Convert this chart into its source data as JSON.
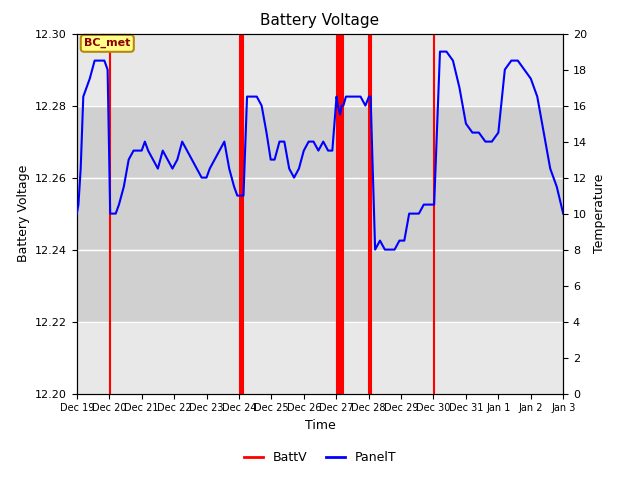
{
  "title": "Battery Voltage",
  "xlabel": "Time",
  "ylabel_left": "Battery Voltage",
  "ylabel_right": "Temperature",
  "ylim_left": [
    12.2,
    12.3
  ],
  "ylim_right": [
    0,
    20
  ],
  "yticks_left": [
    12.2,
    12.22,
    12.24,
    12.26,
    12.28,
    12.3
  ],
  "yticks_right": [
    0,
    2,
    4,
    6,
    8,
    10,
    12,
    14,
    16,
    18,
    20
  ],
  "xtick_labels": [
    "Dec 19",
    "Dec 20",
    "Dec 21",
    "Dec 22",
    "Dec 23",
    "Dec 24",
    "Dec 25",
    "Dec 26",
    "Dec 27",
    "Dec 28",
    "Dec 29",
    "Dec 30",
    "Dec 31",
    "Jan 1",
    "Jan 2",
    "Jan 3"
  ],
  "bg_band_dark": [
    12.22,
    12.28
  ],
  "bg_band_light": [
    12.2,
    12.3
  ],
  "legend_label_red": "BattV",
  "legend_label_blue": "PanelT",
  "bc_met_label": "BC_met",
  "red_vlines": [
    1.03,
    5.02,
    5.09,
    5.14,
    8.01,
    8.05,
    8.12,
    8.17,
    8.22,
    9.01,
    9.06,
    11.02
  ],
  "panel_temp_x": [
    0.0,
    0.05,
    0.12,
    0.2,
    0.3,
    0.4,
    0.55,
    0.7,
    0.85,
    0.95,
    1.03,
    1.1,
    1.2,
    1.3,
    1.45,
    1.6,
    1.75,
    1.9,
    2.0,
    2.1,
    2.2,
    2.35,
    2.5,
    2.65,
    2.8,
    2.95,
    3.1,
    3.25,
    3.4,
    3.55,
    3.7,
    3.85,
    4.0,
    4.1,
    4.25,
    4.4,
    4.55,
    4.7,
    4.85,
    4.95,
    5.02,
    5.09,
    5.14,
    5.25,
    5.4,
    5.55,
    5.7,
    5.85,
    5.98,
    6.1,
    6.25,
    6.4,
    6.55,
    6.7,
    6.85,
    7.0,
    7.15,
    7.3,
    7.45,
    7.6,
    7.75,
    7.88,
    8.01,
    8.05,
    8.12,
    8.17,
    8.22,
    8.3,
    8.45,
    8.6,
    8.75,
    8.9,
    9.01,
    9.06,
    9.2,
    9.35,
    9.5,
    9.65,
    9.8,
    9.95,
    10.1,
    10.25,
    10.4,
    10.55,
    10.7,
    10.85,
    11.02,
    11.2,
    11.4,
    11.6,
    11.8,
    12.0,
    12.2,
    12.4,
    12.6,
    12.8,
    13.0,
    13.2,
    13.4,
    13.6,
    13.8,
    14.0,
    14.2,
    14.4,
    14.6,
    14.8,
    15.0
  ],
  "panel_temp_y": [
    10.0,
    10.5,
    12.5,
    16.5,
    17.0,
    17.5,
    18.5,
    18.5,
    18.5,
    18.0,
    10.0,
    10.0,
    10.0,
    10.5,
    11.5,
    13.0,
    13.5,
    13.5,
    13.5,
    14.0,
    13.5,
    13.0,
    12.5,
    13.5,
    13.0,
    12.5,
    13.0,
    14.0,
    13.5,
    13.0,
    12.5,
    12.0,
    12.0,
    12.5,
    13.0,
    13.5,
    14.0,
    12.5,
    11.5,
    11.0,
    11.0,
    11.0,
    11.0,
    16.5,
    16.5,
    16.5,
    16.0,
    14.5,
    13.0,
    13.0,
    14.0,
    14.0,
    12.5,
    12.0,
    12.5,
    13.5,
    14.0,
    14.0,
    13.5,
    14.0,
    13.5,
    13.5,
    16.5,
    16.0,
    15.5,
    16.0,
    16.0,
    16.5,
    16.5,
    16.5,
    16.5,
    16.0,
    16.5,
    16.5,
    8.0,
    8.5,
    8.0,
    8.0,
    8.0,
    8.5,
    8.5,
    10.0,
    10.0,
    10.0,
    10.5,
    10.5,
    10.5,
    19.0,
    19.0,
    18.5,
    17.0,
    15.0,
    14.5,
    14.5,
    14.0,
    14.0,
    14.5,
    18.0,
    18.5,
    18.5,
    18.0,
    17.5,
    16.5,
    14.5,
    12.5,
    11.5,
    10.0
  ]
}
